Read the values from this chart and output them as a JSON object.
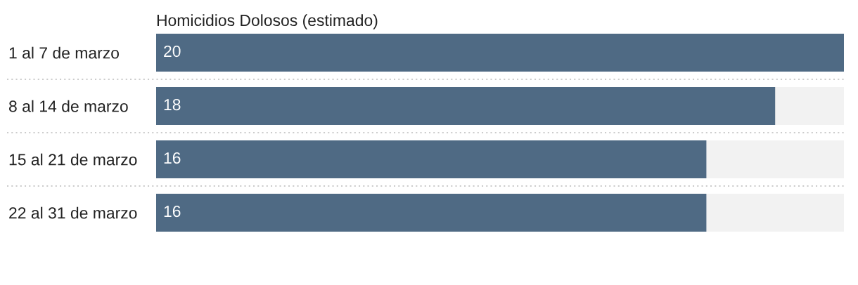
{
  "chart_data": {
    "type": "bar",
    "orientation": "horizontal",
    "title": "Homicidios Dolosos (estimado)",
    "categories": [
      "1 al 7 de marzo",
      "8 al 14 de marzo",
      "15 al 21 de marzo",
      "22 al 31 de marzo"
    ],
    "values": [
      20,
      18,
      16,
      16
    ],
    "color": "#4f6a84",
    "xlim": [
      0,
      20
    ],
    "tick_labels": "y",
    "data_labels": true
  }
}
